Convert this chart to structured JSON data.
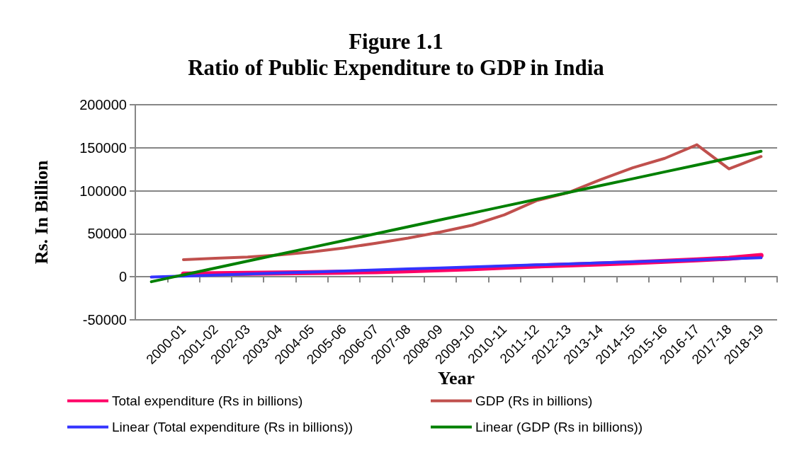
{
  "chart_data": {
    "type": "line",
    "title": "Figure 1.1",
    "subtitle": "Ratio of Public Expenditure to GDP in India",
    "xlabel": "Year",
    "ylabel": "Rs. In Billion",
    "categories": [
      null,
      "2000-01",
      "2001-02",
      "2002-03",
      "2003-04",
      "2004-05",
      "2005-06",
      "2006-07",
      "2007-08",
      "2008-09",
      "2009-10",
      "2010-11",
      "2011-12",
      "2012-13",
      "2013-14",
      "2014-15",
      "2015-16",
      "2016-17",
      "2017-18",
      "2018-19"
    ],
    "series": [
      {
        "name": "Total expenditure (Rs in billions)",
        "color": "#ff0066",
        "values": [
          null,
          3300,
          3600,
          4000,
          4400,
          4800,
          5400,
          6000,
          7000,
          8200,
          9500,
          11000,
          12500,
          13800,
          15000,
          16500,
          18000,
          19700,
          21500,
          24800
        ]
      },
      {
        "name": "GDP (Rs in billions)",
        "color": "#c0504d",
        "values": [
          null,
          20000,
          21500,
          23000,
          25500,
          29000,
          33500,
          39000,
          45000,
          52000,
          60000,
          72000,
          88500,
          98000,
          113000,
          126700,
          137700,
          153500,
          125400,
          139800
        ]
      },
      {
        "name": "Linear (Total expenditure (Rs in billions))",
        "color": "#3333ff",
        "values": [
          -300,
          880,
          2060,
          3240,
          4420,
          5600,
          6770,
          7950,
          9130,
          10310,
          11490,
          12670,
          13850,
          15030,
          16210,
          17390,
          18560,
          19740,
          20920,
          22100
        ]
      },
      {
        "name": "Linear (GDP (Rs in billions))",
        "color": "#008000",
        "values": [
          -5700,
          2280,
          10260,
          18240,
          26220,
          34190,
          42170,
          50150,
          58130,
          66110,
          74090,
          82070,
          90050,
          98030,
          106010,
          113980,
          121960,
          129940,
          137920,
          145900
        ]
      }
    ],
    "ylim": [
      -50000,
      200000
    ],
    "yticks": [
      -50000,
      0,
      50000,
      100000,
      150000,
      200000
    ],
    "grid": "y",
    "legend": "bottom",
    "marker": "none",
    "line_style": "solid"
  }
}
